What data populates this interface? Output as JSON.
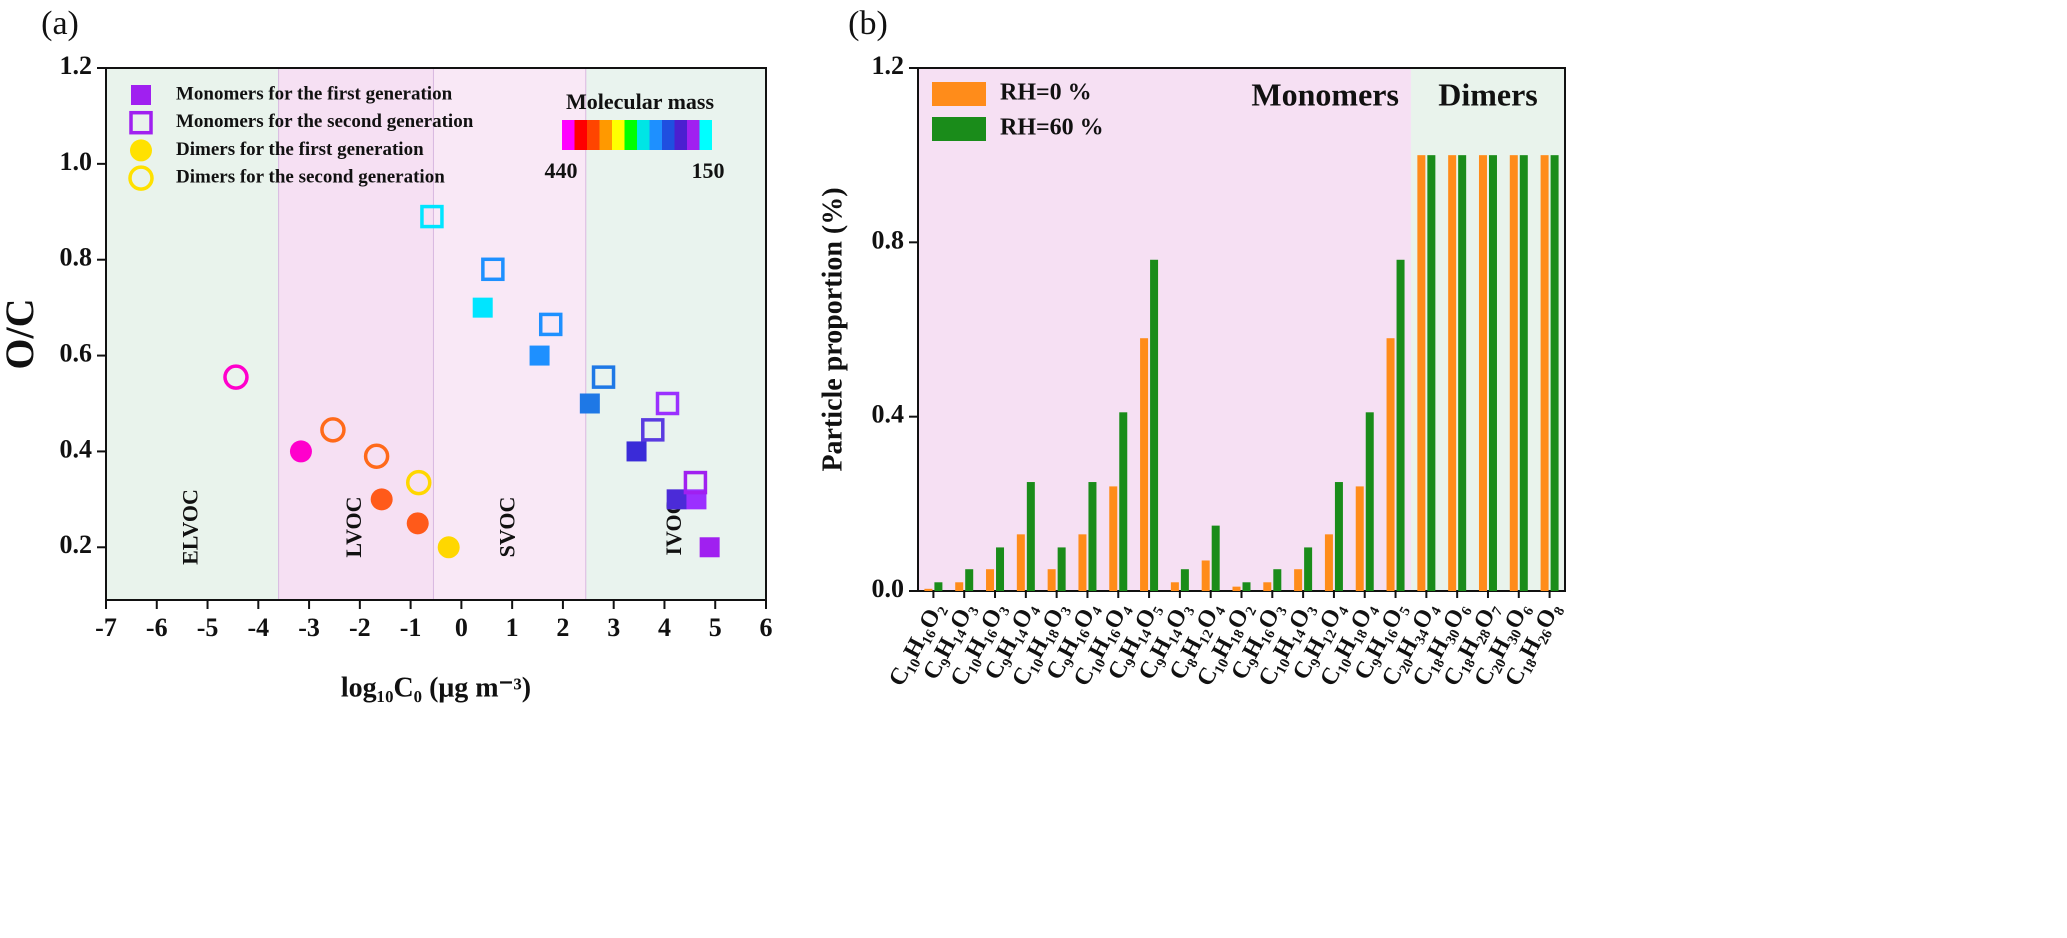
{
  "chart_data": [
    {
      "type": "scatter",
      "panel": "(a)",
      "x_label": "log₁₀C₀ (μg m⁻³)",
      "y_label": "O/C",
      "xlim": [
        -7,
        6
      ],
      "xticks": [
        -7,
        -6,
        -5,
        -4,
        -3,
        -2,
        -1,
        0,
        1,
        2,
        3,
        4,
        5,
        6
      ],
      "ylim": [
        0.09,
        1.2
      ],
      "yticks": [
        0.2,
        0.4,
        0.6,
        0.8,
        {
          "value": 1,
          "label": "1.0"
        },
        1.2
      ],
      "regions": [
        {
          "label": "ELVOC",
          "range": [
            -7,
            -3.6
          ],
          "color": "#e9f3ec"
        },
        {
          "label": "LVOC",
          "range": [
            -3.6,
            -0.55
          ],
          "color": "#f6e0f3"
        },
        {
          "label": "SVOC",
          "range": [
            -0.55,
            2.45
          ],
          "color": "#f9e8f6"
        },
        {
          "label": "IVOC",
          "range": [
            2.45,
            6
          ],
          "color": "#e9f3ee"
        }
      ],
      "colorbar": {
        "title": "Molecular mass",
        "max": 440,
        "min": 150,
        "colors": [
          "#ff00ff",
          "#ff0000",
          "#ff4500",
          "#ff9900",
          "#ffff00",
          "#00ff00",
          "#00e5e5",
          "#1e90ff",
          "#1f4fe0",
          "#4b1fd0",
          "#a020f0",
          "#00ffff"
        ]
      },
      "series": [
        {
          "name": "Monomers for the first generation",
          "marker": "square",
          "filled": true,
          "color": "#a020f0",
          "x": [
            0.42,
            1.54,
            2.53,
            3.45,
            4.24,
            4.63,
            4.89
          ],
          "y": [
            0.7,
            0.6,
            0.5,
            0.4,
            0.3,
            0.3,
            0.2
          ],
          "colors": [
            "#00e5ff",
            "#1e90ff",
            "#1e78e6",
            "#3a2bd8",
            "#4b2bd8",
            "#9b30ff",
            "#a020f0"
          ]
        },
        {
          "name": "Monomers for the second generation",
          "marker": "square",
          "filled": false,
          "color": "#a020f0",
          "x": [
            -0.58,
            0.62,
            1.76,
            2.8,
            3.77,
            4.06,
            4.61
          ],
          "y": [
            0.89,
            0.78,
            0.665,
            0.555,
            0.445,
            0.5,
            0.335
          ],
          "colors": [
            "#00e5ff",
            "#1e90ff",
            "#1e90ff",
            "#1e78e6",
            "#5a3be0",
            "#9b30ff",
            "#a020f0"
          ]
        },
        {
          "name": "Dimers for the first generation",
          "marker": "circle",
          "filled": true,
          "color": "#ffe100",
          "x": [
            -3.16,
            -1.57,
            -0.86,
            -0.25
          ],
          "y": [
            0.4,
            0.3,
            0.25,
            0.2
          ],
          "colors": [
            "#ff00cc",
            "#ff5a1a",
            "#ff5a1a",
            "#ffd700"
          ]
        },
        {
          "name": "Dimers for the second generation",
          "marker": "circle",
          "filled": false,
          "color": "#ffe100",
          "x": [
            -4.44,
            -2.53,
            -1.67,
            -0.84
          ],
          "y": [
            0.555,
            0.445,
            0.39,
            0.335
          ],
          "colors": [
            "#ff00cc",
            "#ff6a1a",
            "#ff6a1a",
            "#ffd700"
          ]
        }
      ]
    },
    {
      "type": "bar",
      "panel": "(b)",
      "y_label": "Particle proportion (%)",
      "ylim": [
        0,
        1.2
      ],
      "yticks": [
        {
          "value": 0,
          "label": "0.0"
        },
        0.4,
        0.8,
        1.2
      ],
      "category_groups": [
        {
          "label": "Monomers",
          "color": "#f6e0f3",
          "categories": [
            "C₁₀H₁₆O₂",
            "C₉H₁₄O₃",
            "C₁₀H₁₆O₃",
            "C₉H₁₄O₄",
            "C₁₀H₁₈O₃",
            "C₉H₁₆O₄",
            "C₁₀H₁₆O₄",
            "C₉H₁₄O₅",
            "C₉H₁₄O₃",
            "C₈H₁₂O₄",
            "C₁₀H₁₈O₂",
            "C₉H₁₆O₃",
            "C₁₀H₁₄O₃",
            "C₉H₁₂O₄",
            "C₁₀H₁₈O₄",
            "C₉H₁₆O₅"
          ]
        },
        {
          "label": "Dimers",
          "color": "#e9f3ec",
          "categories": [
            "C₂₀H₃₄O₄",
            "C₁₈H₃₀O₆",
            "C₁₈H₂₈O₇",
            "C₂₀H₃₀O₆",
            "C₁₈H₂₆O₈"
          ]
        }
      ],
      "series": [
        {
          "name": "RH=0 %",
          "color": "#ff8c1a",
          "values": [
            0.005,
            0.02,
            0.05,
            0.13,
            0.05,
            0.13,
            0.24,
            0.58,
            0.02,
            0.07,
            0.01,
            0.02,
            0.05,
            0.13,
            0.24,
            0.58,
            1,
            1,
            1,
            1,
            1
          ]
        },
        {
          "name": "RH=60 %",
          "color": "#1a8c1a",
          "values": [
            0.02,
            0.05,
            0.1,
            0.25,
            0.1,
            0.25,
            0.41,
            0.76,
            0.05,
            0.15,
            0.02,
            0.05,
            0.1,
            0.25,
            0.41,
            0.76,
            1,
            1,
            1,
            1,
            1
          ]
        }
      ]
    }
  ]
}
